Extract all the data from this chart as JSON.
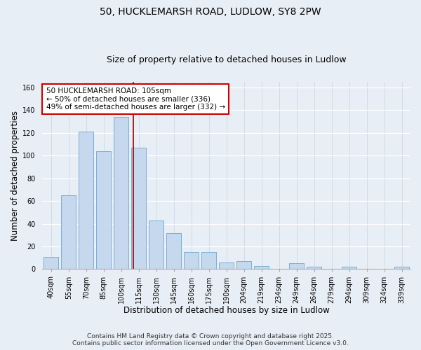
{
  "title": "50, HUCKLEMARSH ROAD, LUDLOW, SY8 2PW",
  "subtitle": "Size of property relative to detached houses in Ludlow",
  "xlabel": "Distribution of detached houses by size in Ludlow",
  "ylabel": "Number of detached properties",
  "categories": [
    "40sqm",
    "55sqm",
    "70sqm",
    "85sqm",
    "100sqm",
    "115sqm",
    "130sqm",
    "145sqm",
    "160sqm",
    "175sqm",
    "190sqm",
    "204sqm",
    "219sqm",
    "234sqm",
    "249sqm",
    "264sqm",
    "279sqm",
    "294sqm",
    "309sqm",
    "324sqm",
    "339sqm"
  ],
  "values": [
    11,
    65,
    121,
    104,
    134,
    107,
    43,
    32,
    15,
    15,
    6,
    7,
    3,
    0,
    5,
    2,
    0,
    2,
    0,
    0,
    2
  ],
  "bar_color": "#c5d8ee",
  "bar_edge_color": "#7aaed4",
  "vline_x_index": 5,
  "vline_color": "#990000",
  "annotation_text": "50 HUCKLEMARSH ROAD: 105sqm\n← 50% of detached houses are smaller (336)\n49% of semi-detached houses are larger (332) →",
  "annotation_box_color": "#ffffff",
  "annotation_box_edge": "#cc0000",
  "ylim": [
    0,
    165
  ],
  "yticks": [
    0,
    20,
    40,
    60,
    80,
    100,
    120,
    140,
    160
  ],
  "bg_color": "#e8eef5",
  "footer_line1": "Contains HM Land Registry data © Crown copyright and database right 2025.",
  "footer_line2": "Contains public sector information licensed under the Open Government Licence v3.0.",
  "title_fontsize": 10,
  "subtitle_fontsize": 9,
  "axis_label_fontsize": 8.5,
  "tick_fontsize": 7,
  "annotation_fontsize": 7.5,
  "footer_fontsize": 6.5
}
